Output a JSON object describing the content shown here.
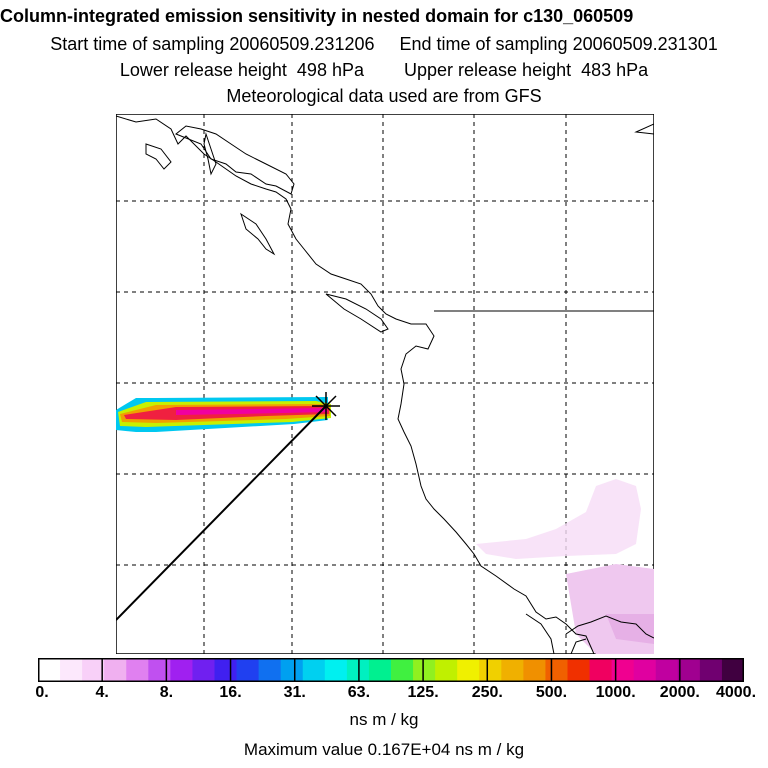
{
  "header": {
    "title": "Column-integrated emission sensitivity in nested domain for c130_060509",
    "line1": "Start time of sampling 20060509.231206     End time of sampling 20060509.231301",
    "line2": "Lower release height  498 hPa        Upper release height  483 hPa",
    "line3": "Meteorological data used are from GFS"
  },
  "colorbar": {
    "ticks": [
      "0.",
      "4.",
      "8.",
      "16.",
      "31.",
      "63.",
      "125.",
      "250.",
      "500.",
      "1000.",
      "2000.",
      "4000."
    ],
    "colors": [
      "#ffffff",
      "#fce8fc",
      "#f8d0f8",
      "#f0b0f0",
      "#e080f0",
      "#c050f0",
      "#a020f0",
      "#7020f0",
      "#4020f0",
      "#2040f0",
      "#1070f0",
      "#00a0f0",
      "#00d0f0",
      "#00f0f0",
      "#00f0c0",
      "#00f090",
      "#40f040",
      "#90f020",
      "#c0f000",
      "#f0f000",
      "#f0d000",
      "#f0b000",
      "#f09000",
      "#f06000",
      "#f03000",
      "#f00060",
      "#f00090",
      "#e000a0",
      "#c000a0",
      "#a00090",
      "#700070",
      "#400040"
    ],
    "unit": "ns m / kg"
  },
  "max_value": "Maximum value  0.167E+04 ns m / kg",
  "colors": {
    "coast": "#000000",
    "grid": "#000000",
    "track": "#000000",
    "accent_plume": "#ff1493"
  }
}
